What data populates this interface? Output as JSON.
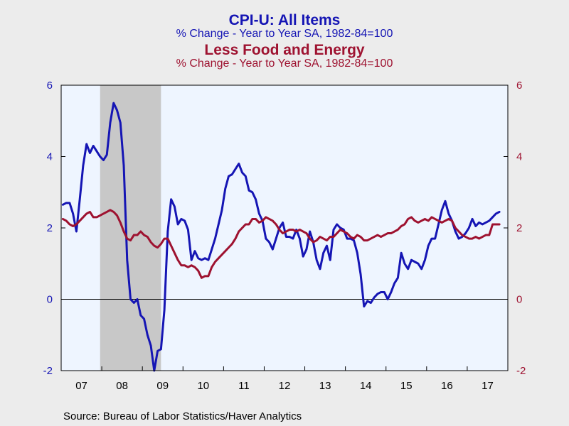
{
  "titles": {
    "series1_title": "CPI-U: All Items",
    "series1_subtitle": "% Change - Year to Year    SA, 1982-84=100",
    "series2_title": "Less Food and Energy",
    "series2_subtitle": "% Change - Year to Year    SA, 1982-84=100"
  },
  "source": "Source:  Bureau of Labor Statistics/Haver Analytics",
  "colors": {
    "series1": "#1515B4",
    "series2": "#9E1230",
    "plot_bg": "#EEF5FF",
    "recession": "#C8C8C8",
    "page_bg": "#ECECEC"
  },
  "chart_data": {
    "type": "line",
    "x_start": "2007-01",
    "x_end": "2017-12",
    "ylim_left": [
      -2,
      6
    ],
    "ylim_right": [
      -2,
      6
    ],
    "yticks_left": [
      "6",
      "4",
      "2",
      "0",
      "-2"
    ],
    "yticks_right": [
      "6",
      "4",
      "2",
      "0",
      "-2"
    ],
    "xticks": [
      "07",
      "08",
      "09",
      "10",
      "11",
      "12",
      "13",
      "14",
      "15",
      "16",
      "17"
    ],
    "recession": [
      "2007-12",
      "2009-06"
    ],
    "zero_line": true,
    "series": [
      {
        "name": "CPI-U: All Items",
        "axis": "left",
        "color": "#1515B4",
        "values": [
          2.65,
          2.7,
          2.7,
          2.4,
          1.9,
          2.8,
          3.75,
          4.35,
          4.1,
          4.3,
          4.15,
          4.0,
          3.9,
          4.05,
          4.95,
          5.5,
          5.3,
          4.95,
          3.75,
          1.1,
          0.0,
          -0.1,
          0.0,
          -0.45,
          -0.55,
          -1.0,
          -1.3,
          -2.0,
          -1.45,
          -1.4,
          -0.3,
          1.9,
          2.8,
          2.6,
          2.1,
          2.25,
          2.2,
          1.95,
          1.1,
          1.35,
          1.15,
          1.1,
          1.15,
          1.1,
          1.4,
          1.7,
          2.1,
          2.5,
          3.1,
          3.45,
          3.5,
          3.65,
          3.8,
          3.55,
          3.45,
          3.05,
          3.0,
          2.8,
          2.4,
          2.2,
          1.7,
          1.6,
          1.4,
          1.7,
          2.0,
          2.15,
          1.75,
          1.75,
          1.7,
          1.95,
          1.7,
          1.2,
          1.4,
          1.9,
          1.6,
          1.1,
          0.85,
          1.3,
          1.5,
          1.1,
          1.95,
          2.1,
          2.0,
          1.95,
          1.7,
          1.7,
          1.65,
          1.3,
          0.7,
          -0.2,
          -0.05,
          -0.1,
          0.05,
          0.15,
          0.2,
          0.2,
          0.0,
          0.2,
          0.45,
          0.6,
          1.3,
          1.0,
          0.85,
          1.1,
          1.05,
          1.0,
          0.85,
          1.1,
          1.5,
          1.7,
          1.7,
          2.1,
          2.5,
          2.75,
          2.4,
          2.2,
          1.9,
          1.7,
          1.75,
          1.85,
          2.0,
          2.25,
          2.05,
          2.15,
          2.1,
          2.15,
          2.2,
          2.3,
          2.4,
          2.45
        ]
      },
      {
        "name": "Less Food and Energy",
        "axis": "right",
        "color": "#9E1230",
        "values": [
          2.25,
          2.2,
          2.1,
          2.05,
          2.1,
          2.2,
          2.3,
          2.4,
          2.45,
          2.3,
          2.3,
          2.35,
          2.4,
          2.45,
          2.5,
          2.45,
          2.35,
          2.15,
          1.9,
          1.7,
          1.65,
          1.8,
          1.8,
          1.9,
          1.8,
          1.75,
          1.6,
          1.5,
          1.45,
          1.55,
          1.7,
          1.7,
          1.5,
          1.3,
          1.1,
          0.95,
          0.95,
          0.9,
          0.95,
          0.9,
          0.8,
          0.6,
          0.65,
          0.65,
          0.9,
          1.05,
          1.15,
          1.25,
          1.35,
          1.45,
          1.55,
          1.7,
          1.9,
          2.0,
          2.1,
          2.1,
          2.25,
          2.25,
          2.15,
          2.2,
          2.3,
          2.25,
          2.2,
          2.1,
          1.95,
          1.85,
          1.9,
          1.95,
          1.95,
          1.9,
          1.95,
          1.9,
          1.85,
          1.7,
          1.6,
          1.65,
          1.75,
          1.7,
          1.65,
          1.75,
          1.75,
          1.85,
          1.95,
          1.9,
          1.85,
          1.75,
          1.7,
          1.8,
          1.75,
          1.65,
          1.65,
          1.7,
          1.75,
          1.8,
          1.75,
          1.8,
          1.85,
          1.85,
          1.9,
          1.95,
          2.05,
          2.1,
          2.25,
          2.3,
          2.2,
          2.15,
          2.2,
          2.25,
          2.2,
          2.3,
          2.25,
          2.2,
          2.15,
          2.2,
          2.25,
          2.2,
          2.0,
          1.9,
          1.8,
          1.75,
          1.7,
          1.7,
          1.75,
          1.7,
          1.75,
          1.8,
          1.8,
          2.1,
          2.1,
          2.1
        ]
      }
    ]
  }
}
